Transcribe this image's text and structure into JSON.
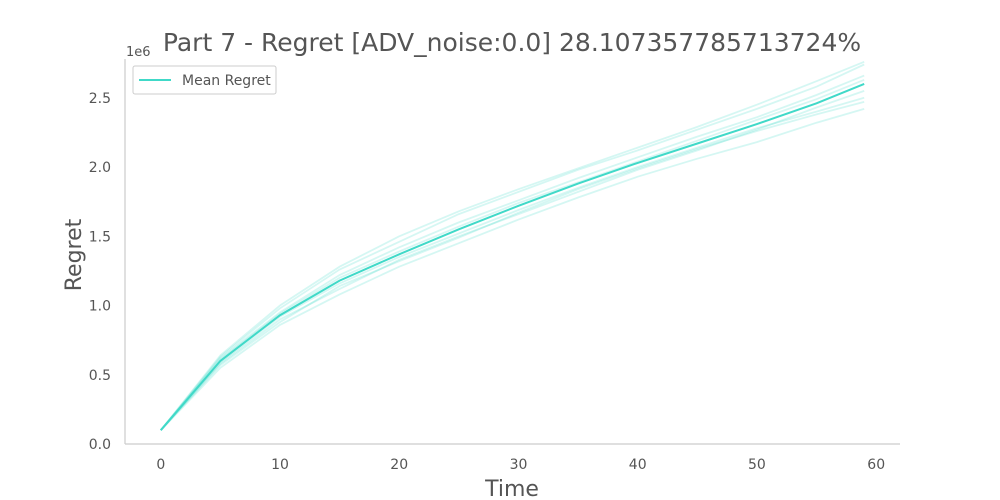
{
  "chart_data": {
    "type": "line",
    "title": "Part 7 - Regret [ADV_noise:0.0] 28.107357785713724%",
    "xlabel": "Time",
    "ylabel": "Regret",
    "y_offset_label": "1e6",
    "xlim": [
      -3,
      62
    ],
    "ylim": [
      0,
      2.78
    ],
    "y_unit_multiplier": 1000000,
    "x_ticks": [
      0,
      10,
      20,
      30,
      40,
      50,
      60
    ],
    "x_tick_labels": [
      "0",
      "10",
      "20",
      "30",
      "40",
      "50",
      "60"
    ],
    "y_ticks": [
      0,
      0.5,
      1.0,
      1.5,
      2.0,
      2.5
    ],
    "y_tick_labels": [
      "0.0",
      "0.5",
      "1.0",
      "1.5",
      "2.0",
      "2.5"
    ],
    "grid": false,
    "legend": {
      "position": "top-left",
      "entries": [
        "Mean Regret"
      ]
    },
    "color": "#40d9c8",
    "x": [
      0,
      5,
      10,
      15,
      20,
      25,
      30,
      35,
      40,
      45,
      50,
      55,
      59
    ],
    "series": [
      {
        "name": "Mean Regret",
        "values": [
          0.1,
          0.6,
          0.93,
          1.18,
          1.37,
          1.55,
          1.72,
          1.88,
          2.03,
          2.17,
          2.31,
          2.46,
          2.6
        ]
      }
    ],
    "runs": [
      {
        "values": [
          0.1,
          0.58,
          0.9,
          1.12,
          1.33,
          1.5,
          1.66,
          1.82,
          1.98,
          2.12,
          2.27,
          2.43,
          2.55
        ]
      },
      {
        "values": [
          0.1,
          0.63,
          0.98,
          1.26,
          1.46,
          1.66,
          1.82,
          1.98,
          2.12,
          2.27,
          2.42,
          2.58,
          2.74
        ]
      },
      {
        "values": [
          0.1,
          0.55,
          0.86,
          1.08,
          1.28,
          1.45,
          1.62,
          1.78,
          1.93,
          2.06,
          2.18,
          2.32,
          2.42
        ]
      },
      {
        "values": [
          0.1,
          0.62,
          0.95,
          1.22,
          1.42,
          1.6,
          1.76,
          1.92,
          2.07,
          2.22,
          2.36,
          2.52,
          2.66
        ]
      },
      {
        "values": [
          0.1,
          0.59,
          0.92,
          1.16,
          1.35,
          1.52,
          1.69,
          1.85,
          2.0,
          2.14,
          2.28,
          2.4,
          2.5
        ]
      },
      {
        "values": [
          0.1,
          0.64,
          1.0,
          1.28,
          1.5,
          1.68,
          1.84,
          1.99,
          2.14,
          2.29,
          2.45,
          2.62,
          2.76
        ]
      },
      {
        "values": [
          0.1,
          0.57,
          0.88,
          1.14,
          1.32,
          1.49,
          1.67,
          1.84,
          1.99,
          2.13,
          2.26,
          2.38,
          2.47
        ]
      },
      {
        "values": [
          0.1,
          0.61,
          0.94,
          1.2,
          1.39,
          1.57,
          1.74,
          1.89,
          2.04,
          2.19,
          2.34,
          2.49,
          2.63
        ]
      }
    ]
  }
}
